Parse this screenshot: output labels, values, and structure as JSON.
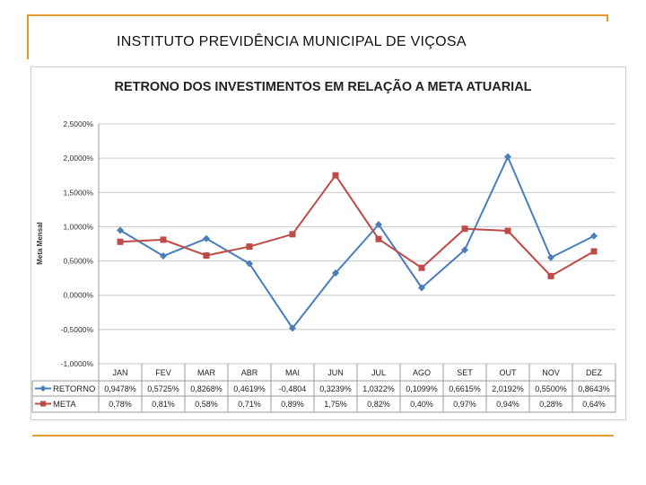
{
  "slide_title": "INSTITUTO PREVIDÊNCIA MUNICIPAL DE VIÇOSA",
  "chart_data": {
    "type": "line",
    "title": "RETRONO DOS INVESTIMENTOS EM RELAÇÃO A META ATUARIAL",
    "ylabel": "Meta Mensal",
    "xlabel": "",
    "ylim": [
      -1.0,
      2.5
    ],
    "y_ticks": [
      "2,5000%",
      "2,0000%",
      "1,5000%",
      "1,0000%",
      "0,5000%",
      "0,0000%",
      "-0,5000%",
      "-1,0000%"
    ],
    "y_tick_values": [
      2.5,
      2.0,
      1.5,
      1.0,
      0.5,
      0.0,
      -0.5,
      -1.0
    ],
    "grid": true,
    "legend": "data-table",
    "categories": [
      "JAN",
      "FEV",
      "MAR",
      "ABR",
      "MAI",
      "JUN",
      "JUL",
      "AGO",
      "SET",
      "OUT",
      "NOV",
      "DEZ"
    ],
    "series": [
      {
        "name": "RETORNO",
        "color": "#4a7ebb",
        "marker": "diamond",
        "values": [
          0.9478,
          0.5725,
          0.8268,
          0.4619,
          -0.4804,
          0.3239,
          1.0322,
          0.1099,
          0.6615,
          2.0192,
          0.55,
          0.8643
        ],
        "labels": [
          "0,9478%",
          "0,5725%",
          "0,8268%",
          "0,4619%",
          "-0,4804",
          "0,3239%",
          "1,0322%",
          "0,1099%",
          "0,6615%",
          "2,0192%",
          "0,5500%",
          "0,8643%"
        ]
      },
      {
        "name": "META",
        "color": "#be4b48",
        "marker": "square",
        "values": [
          0.78,
          0.81,
          0.58,
          0.71,
          0.89,
          1.75,
          0.82,
          0.4,
          0.97,
          0.94,
          0.28,
          0.64
        ],
        "labels": [
          "0,78%",
          "0,81%",
          "0,58%",
          "0,71%",
          "0,89%",
          "1,75%",
          "0,82%",
          "0,40%",
          "0,97%",
          "0,94%",
          "0,28%",
          "0,64%"
        ]
      }
    ]
  }
}
